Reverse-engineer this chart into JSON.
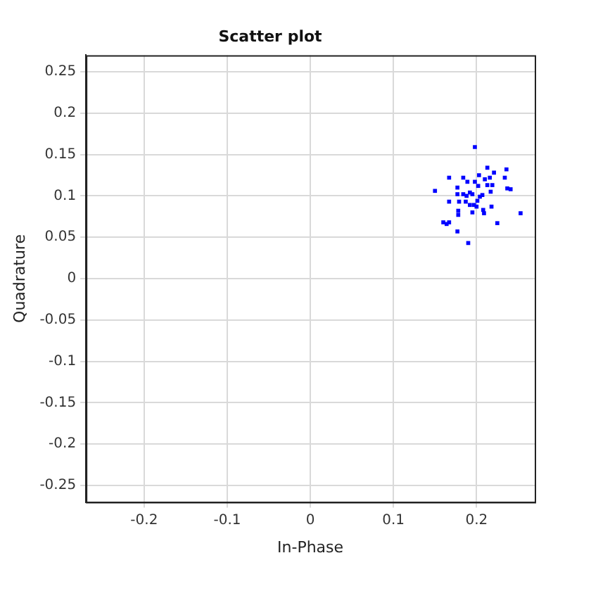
{
  "chart_data": {
    "type": "scatter",
    "title": "Scatter plot",
    "xlabel": "In-Phase",
    "ylabel": "Quadrature",
    "x": [
      0.198,
      0.15,
      0.167,
      0.184,
      0.177,
      0.189,
      0.198,
      0.203,
      0.213,
      0.221,
      0.236,
      0.234,
      0.21,
      0.216,
      0.213,
      0.219,
      0.217,
      0.237,
      0.241,
      0.202,
      0.177,
      0.184,
      0.192,
      0.188,
      0.195,
      0.204,
      0.207,
      0.201,
      0.167,
      0.179,
      0.187,
      0.192,
      0.197,
      0.2,
      0.218,
      0.178,
      0.178,
      0.195,
      0.208,
      0.209,
      0.253,
      0.16,
      0.164,
      0.167,
      0.225,
      0.177,
      0.19
    ],
    "series": [
      {
        "color": "#0000ff",
        "values": [
          0.159,
          0.106,
          0.122,
          0.122,
          0.11,
          0.117,
          0.117,
          0.125,
          0.134,
          0.128,
          0.132,
          0.122,
          0.12,
          0.122,
          0.113,
          0.113,
          0.105,
          0.109,
          0.108,
          0.112,
          0.102,
          0.102,
          0.104,
          0.1,
          0.102,
          0.099,
          0.101,
          0.094,
          0.093,
          0.093,
          0.093,
          0.089,
          0.089,
          0.087,
          0.087,
          0.082,
          0.077,
          0.08,
          0.083,
          0.079,
          0.079,
          0.068,
          0.066,
          0.068,
          0.067,
          0.057,
          0.043
        ]
      }
    ],
    "xlim": [
      -0.27,
      0.27
    ],
    "ylim": [
      -0.27,
      0.27
    ],
    "xticks": [
      -0.2,
      -0.1,
      0,
      0.1,
      0.2
    ],
    "yticks": [
      -0.25,
      -0.2,
      -0.15,
      -0.1,
      -0.05,
      0,
      0.05,
      0.1,
      0.15,
      0.2,
      0.25
    ],
    "grid": true,
    "marker": "square",
    "legend": false
  }
}
